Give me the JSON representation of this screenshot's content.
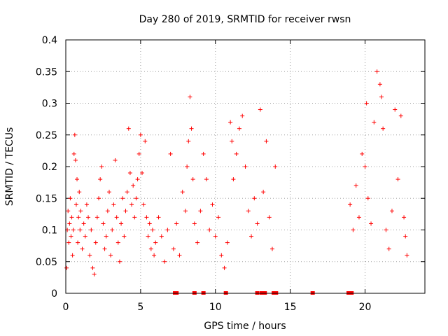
{
  "chart_data": {
    "type": "scatter",
    "title": "Day 280 of 2019, SRMTID for receiver rwsn",
    "xlabel": "GPS time / hours",
    "ylabel": "SRMTID / TECUs",
    "xlim": [
      0,
      24
    ],
    "ylim": [
      0,
      0.4
    ],
    "x_ticks": [
      0,
      5,
      10,
      15,
      20
    ],
    "x_tick_labels": [
      "0",
      "5",
      "10",
      "15",
      "20"
    ],
    "y_ticks": [
      0,
      0.05,
      0.1,
      0.15,
      0.2,
      0.25,
      0.3,
      0.35,
      0.4
    ],
    "y_tick_labels": [
      "0",
      "0.05",
      "0.1",
      "0.15",
      "0.2",
      "0.25",
      "0.3",
      "0.35",
      "0.4"
    ],
    "grid": true,
    "marker": "+",
    "color": "#ff0000",
    "series": [
      {
        "name": "SRMTID",
        "points": [
          [
            0.05,
            0.04
          ],
          [
            0.1,
            0.1
          ],
          [
            0.15,
            0.13
          ],
          [
            0.2,
            0.08
          ],
          [
            0.25,
            0.11
          ],
          [
            0.3,
            0.15
          ],
          [
            0.35,
            0.09
          ],
          [
            0.4,
            0.12
          ],
          [
            0.45,
            0.06
          ],
          [
            0.5,
            0.1
          ],
          [
            0.55,
            0.22
          ],
          [
            0.6,
            0.25
          ],
          [
            0.65,
            0.21
          ],
          [
            0.7,
            0.14
          ],
          [
            0.75,
            0.18
          ],
          [
            0.8,
            0.08
          ],
          [
            0.85,
            0.12
          ],
          [
            0.9,
            0.16
          ],
          [
            0.95,
            0.1
          ],
          [
            1.0,
            0.13
          ],
          [
            1.1,
            0.07
          ],
          [
            1.2,
            0.11
          ],
          [
            1.3,
            0.09
          ],
          [
            1.4,
            0.14
          ],
          [
            1.5,
            0.12
          ],
          [
            1.6,
            0.06
          ],
          [
            1.7,
            0.1
          ],
          [
            1.8,
            0.04
          ],
          [
            1.9,
            0.03
          ],
          [
            2.0,
            0.08
          ],
          [
            2.1,
            0.12
          ],
          [
            2.2,
            0.15
          ],
          [
            2.3,
            0.18
          ],
          [
            2.4,
            0.2
          ],
          [
            2.5,
            0.11
          ],
          [
            2.6,
            0.07
          ],
          [
            2.7,
            0.09
          ],
          [
            2.8,
            0.13
          ],
          [
            2.9,
            0.16
          ],
          [
            3.0,
            0.06
          ],
          [
            3.1,
            0.1
          ],
          [
            3.2,
            0.14
          ],
          [
            3.3,
            0.21
          ],
          [
            3.4,
            0.12
          ],
          [
            3.5,
            0.08
          ],
          [
            3.6,
            0.05
          ],
          [
            3.7,
            0.11
          ],
          [
            3.8,
            0.15
          ],
          [
            3.9,
            0.09
          ],
          [
            4.0,
            0.13
          ],
          [
            4.1,
            0.16
          ],
          [
            4.2,
            0.26
          ],
          [
            4.3,
            0.19
          ],
          [
            4.4,
            0.14
          ],
          [
            4.5,
            0.17
          ],
          [
            4.6,
            0.12
          ],
          [
            4.7,
            0.15
          ],
          [
            4.8,
            0.18
          ],
          [
            4.9,
            0.22
          ],
          [
            5.0,
            0.25
          ],
          [
            5.1,
            0.19
          ],
          [
            5.2,
            0.14
          ],
          [
            5.3,
            0.24
          ],
          [
            5.4,
            0.12
          ],
          [
            5.5,
            0.09
          ],
          [
            5.6,
            0.11
          ],
          [
            5.7,
            0.07
          ],
          [
            5.8,
            0.1
          ],
          [
            5.9,
            0.06
          ],
          [
            6.0,
            0.08
          ],
          [
            6.2,
            0.12
          ],
          [
            6.4,
            0.09
          ],
          [
            6.6,
            0.05
          ],
          [
            6.8,
            0.1
          ],
          [
            7.0,
            0.22
          ],
          [
            7.2,
            0.07
          ],
          [
            7.4,
            0.11
          ],
          [
            7.6,
            0.06
          ],
          [
            7.8,
            0.16
          ],
          [
            8.0,
            0.13
          ],
          [
            8.1,
            0.2
          ],
          [
            8.2,
            0.24
          ],
          [
            8.3,
            0.31
          ],
          [
            8.4,
            0.26
          ],
          [
            8.5,
            0.18
          ],
          [
            8.6,
            0.11
          ],
          [
            8.8,
            0.08
          ],
          [
            9.0,
            0.13
          ],
          [
            9.2,
            0.22
          ],
          [
            9.4,
            0.18
          ],
          [
            9.6,
            0.1
          ],
          [
            9.8,
            0.14
          ],
          [
            10.0,
            0.09
          ],
          [
            10.2,
            0.12
          ],
          [
            10.4,
            0.06
          ],
          [
            10.6,
            0.04
          ],
          [
            10.8,
            0.08
          ],
          [
            11.0,
            0.27
          ],
          [
            11.1,
            0.24
          ],
          [
            11.2,
            0.18
          ],
          [
            11.4,
            0.22
          ],
          [
            11.6,
            0.26
          ],
          [
            11.8,
            0.28
          ],
          [
            12.0,
            0.2
          ],
          [
            12.2,
            0.13
          ],
          [
            12.4,
            0.09
          ],
          [
            12.6,
            0.15
          ],
          [
            12.8,
            0.11
          ],
          [
            13.0,
            0.29
          ],
          [
            13.2,
            0.16
          ],
          [
            13.4,
            0.24
          ],
          [
            13.6,
            0.12
          ],
          [
            13.8,
            0.07
          ],
          [
            14.0,
            0.2
          ],
          [
            19.0,
            0.14
          ],
          [
            19.2,
            0.1
          ],
          [
            19.4,
            0.17
          ],
          [
            19.6,
            0.12
          ],
          [
            19.8,
            0.22
          ],
          [
            20.0,
            0.2
          ],
          [
            20.1,
            0.3
          ],
          [
            20.2,
            0.15
          ],
          [
            20.4,
            0.11
          ],
          [
            20.6,
            0.27
          ],
          [
            20.8,
            0.35
          ],
          [
            21.0,
            0.33
          ],
          [
            21.1,
            0.31
          ],
          [
            21.2,
            0.26
          ],
          [
            21.4,
            0.1
          ],
          [
            21.6,
            0.07
          ],
          [
            21.8,
            0.13
          ],
          [
            22.0,
            0.29
          ],
          [
            22.2,
            0.18
          ],
          [
            22.4,
            0.28
          ],
          [
            22.6,
            0.12
          ],
          [
            22.7,
            0.09
          ],
          [
            22.8,
            0.06
          ]
        ]
      }
    ],
    "zero_markers": [
      7.3,
      7.4,
      8.6,
      9.2,
      10.7,
      12.8,
      13.1,
      13.3,
      13.9,
      14.05,
      16.5,
      18.9,
      19.0,
      19.1
    ]
  }
}
